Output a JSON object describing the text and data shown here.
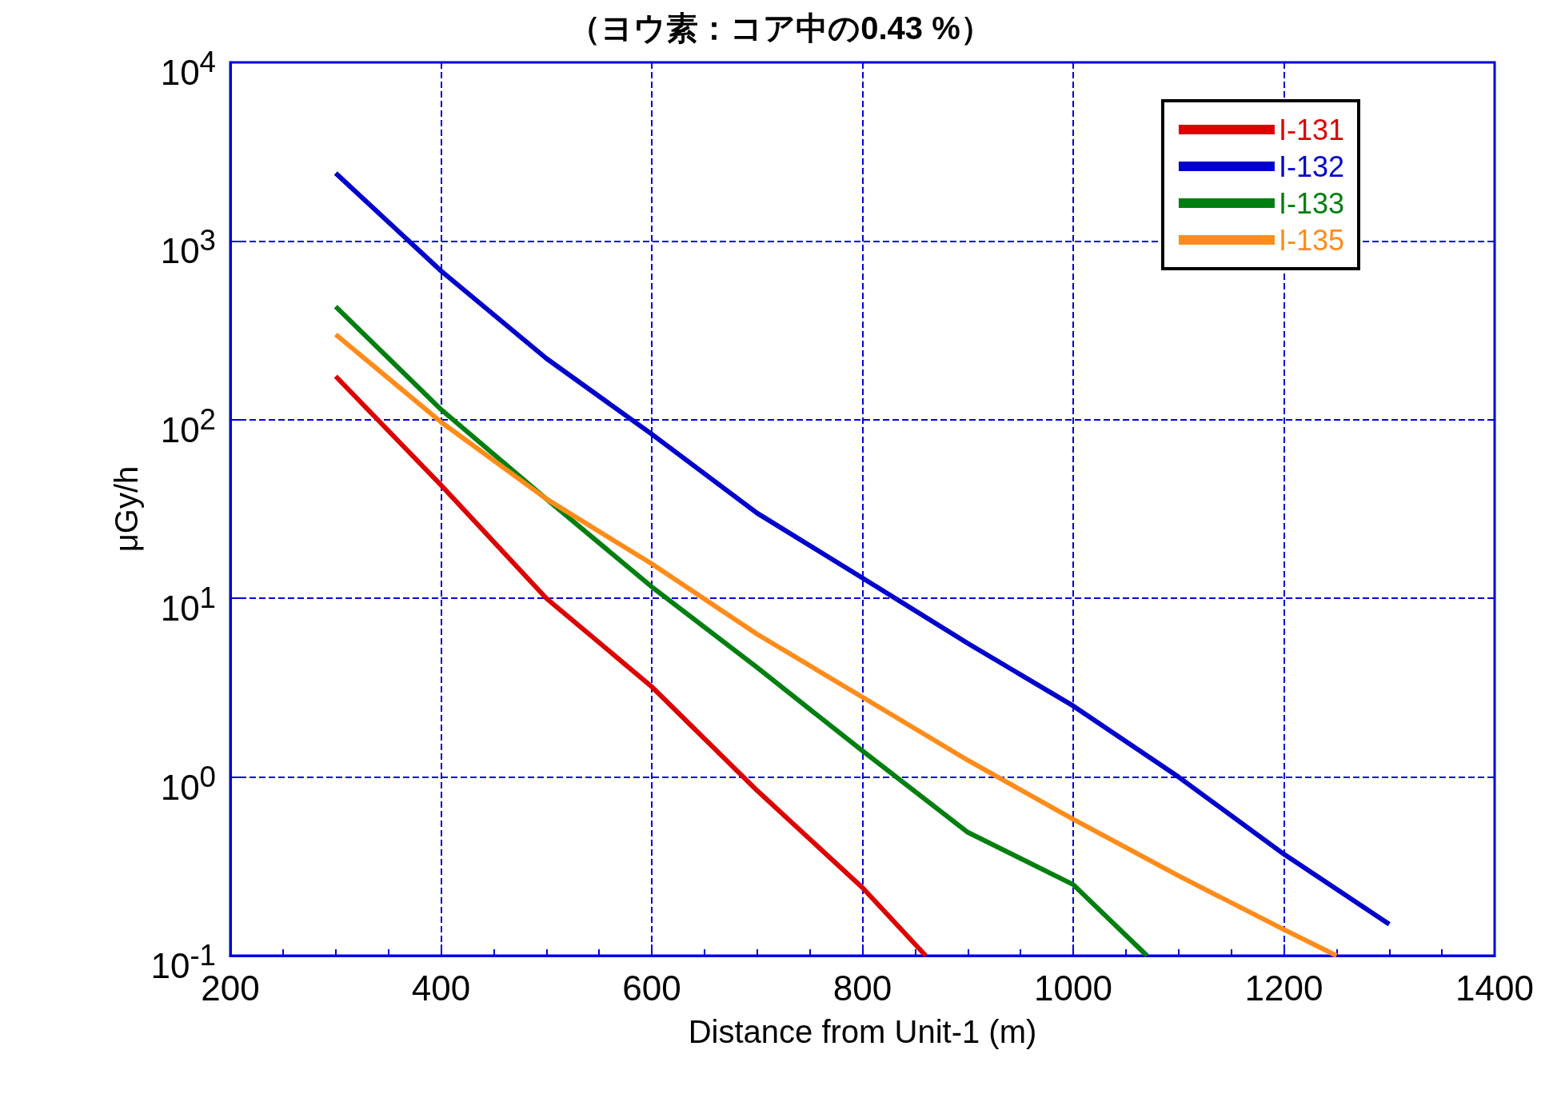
{
  "chart_data": {
    "type": "line",
    "title": "（ヨウ素：コア中の0.43 %）",
    "xlabel": "Distance from Unit-1 (m)",
    "ylabel": "μGy/h",
    "xlim": [
      200,
      1400
    ],
    "xticks": [
      200,
      400,
      600,
      800,
      1000,
      1200,
      1400
    ],
    "ylim": [
      0.1,
      10000
    ],
    "yticks": [
      {
        "value": 0.1,
        "label": "10$^{-1}$"
      },
      {
        "value": 1,
        "label": "10$^{0}$"
      },
      {
        "value": 10,
        "label": "10$^{1}$"
      },
      {
        "value": 100,
        "label": "10$^{2}$"
      },
      {
        "value": 1000,
        "label": "10$^{3}$"
      },
      {
        "value": 10000,
        "label": "10$^{4}$"
      }
    ],
    "log": "y",
    "grid": true,
    "legend": "top right",
    "line_style": "solid",
    "marker": "none",
    "series": [
      {
        "name": "I-131",
        "color": "#dd0000",
        "x": [
          300,
          400,
          500,
          600,
          700,
          800,
          860
        ],
        "values": [
          175,
          43,
          10,
          3.2,
          0.84,
          0.24,
          0.1
        ]
      },
      {
        "name": "I-132",
        "color": "#0000cc",
        "x": [
          300,
          400,
          500,
          600,
          700,
          800,
          900,
          1000,
          1100,
          1200,
          1300
        ],
        "values": [
          2400,
          680,
          220,
          83,
          30,
          13,
          5.6,
          2.5,
          1.0,
          0.37,
          0.15
        ]
      },
      {
        "name": "I-133",
        "color": "#007f10",
        "x": [
          300,
          400,
          500,
          600,
          700,
          800,
          900,
          1000,
          1070
        ],
        "values": [
          430,
          114,
          36,
          11.6,
          4.1,
          1.4,
          0.49,
          0.25,
          0.1
        ]
      },
      {
        "name": "I-135",
        "color": "#ff8c1a",
        "x": [
          300,
          400,
          500,
          600,
          700,
          800,
          900,
          1000,
          1100,
          1200,
          1250
        ],
        "values": [
          300,
          97,
          36,
          15.6,
          6.3,
          2.8,
          1.24,
          0.58,
          0.28,
          0.14,
          0.1
        ]
      }
    ]
  }
}
